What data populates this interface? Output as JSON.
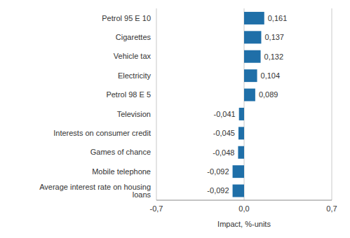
{
  "chart_data": {
    "type": "bar",
    "orientation": "horizontal",
    "x_label": "Impact, %-units",
    "categories": [
      "Petrol 95 E 10",
      "Cigarettes",
      "Vehicle tax",
      "Electricity",
      "Petrol 98 E 5",
      "Television",
      "Interests on consumer credit",
      "Games of chance",
      "Mobile telephone",
      "Average interest rate on housing loans"
    ],
    "values": [
      0.161,
      0.137,
      0.132,
      0.104,
      0.089,
      -0.041,
      -0.045,
      -0.048,
      -0.092,
      -0.092
    ],
    "value_labels": [
      "0,161",
      "0,137",
      "0,132",
      "0,104",
      "0,089",
      "-0,041",
      "-0,045",
      "-0,048",
      "-0,092",
      "-0,092"
    ],
    "data_labels": true,
    "color": "#1f6fa8",
    "xlim": [
      -0.7,
      0.7
    ],
    "xticks": [
      {
        "value": -0.7,
        "label": "-0,7"
      },
      {
        "value": 0,
        "label": "0,0"
      },
      {
        "value": 0.7,
        "label": "0,7"
      }
    ],
    "grid": true
  }
}
